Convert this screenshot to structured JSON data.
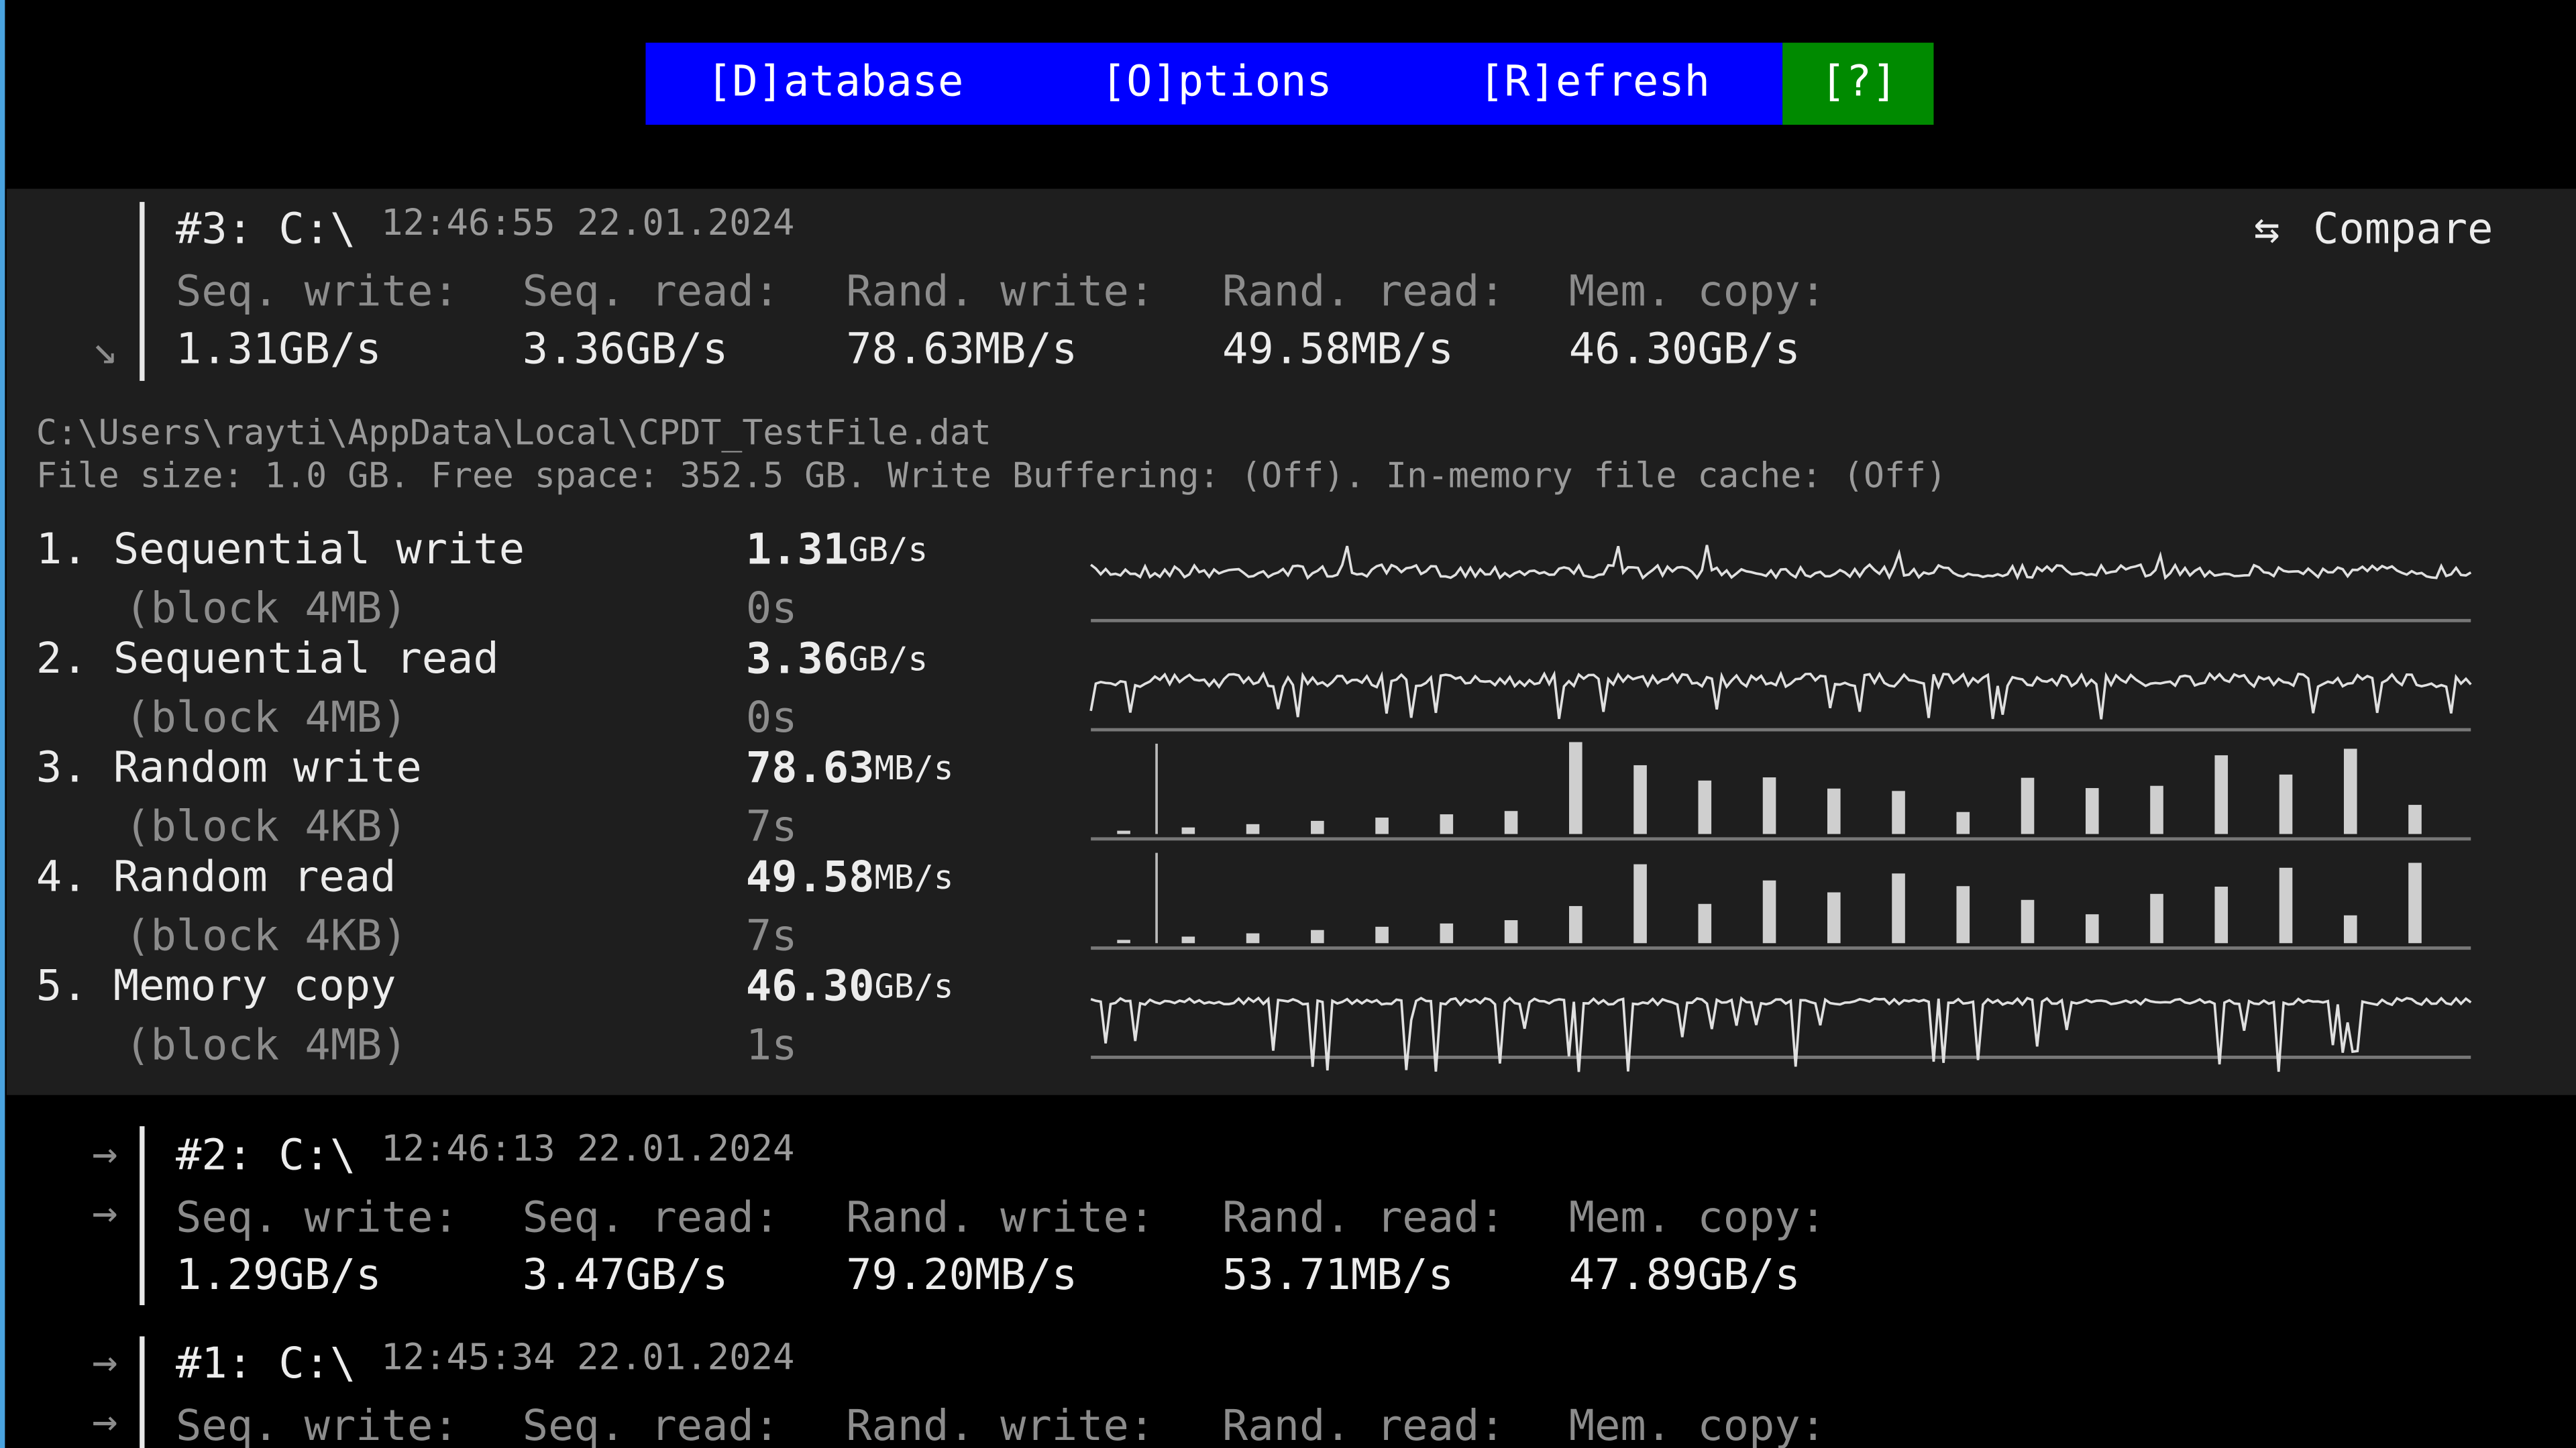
{
  "menu": [
    "[D]atabase",
    "[O]ptions",
    "[R]efresh",
    "[?]"
  ],
  "compare": "Compare",
  "runs": [
    {
      "id": "#3: C:\\",
      "time": "12:46:55 22.01.2024",
      "labels": [
        "Seq. write:",
        "Seq. read:",
        "Rand. write:",
        "Rand. read:",
        "Mem. copy:"
      ],
      "values": [
        "1.31GB/s",
        "3.36GB/s",
        "78.63MB/s",
        "49.58MB/s",
        "46.30GB/s"
      ]
    },
    {
      "id": "#2: C:\\",
      "time": "12:46:13 22.01.2024",
      "labels": [
        "Seq. write:",
        "Seq. read:",
        "Rand. write:",
        "Rand. read:",
        "Mem. copy:"
      ],
      "values": [
        "1.29GB/s",
        "3.47GB/s",
        "79.20MB/s",
        "53.71MB/s",
        "47.89GB/s"
      ]
    },
    {
      "id": "#1: C:\\",
      "time": "12:45:34 22.01.2024",
      "labels": [
        "Seq. write:",
        "Seq. read:",
        "Rand. write:",
        "Rand. read:",
        "Mem. copy:"
      ]
    }
  ],
  "current": {
    "path": "C:\\Users\\rayti\\AppData\\Local\\CPDT_TestFile.dat",
    "info": "File size: 1.0 GB. Free space: 352.5 GB. Write Buffering: (Off). In-memory file cache: (Off)",
    "tests": [
      {
        "name": "1. Sequential write",
        "block": "(block 4MB)",
        "value": "1.31",
        "unit": "GB/s",
        "time": "0s"
      },
      {
        "name": "2. Sequential read",
        "block": "(block 4MB)",
        "value": "3.36",
        "unit": "GB/s",
        "time": "0s"
      },
      {
        "name": "3. Random write",
        "block": "(block 4KB)",
        "value": "78.63",
        "unit": "MB/s",
        "time": "7s"
      },
      {
        "name": "4. Random read",
        "block": "(block 4KB)",
        "value": "49.58",
        "unit": "MB/s",
        "time": "7s"
      },
      {
        "name": "5. Memory copy",
        "block": "(block 4MB)",
        "value": "46.30",
        "unit": "GB/s",
        "time": "1s"
      }
    ]
  }
}
